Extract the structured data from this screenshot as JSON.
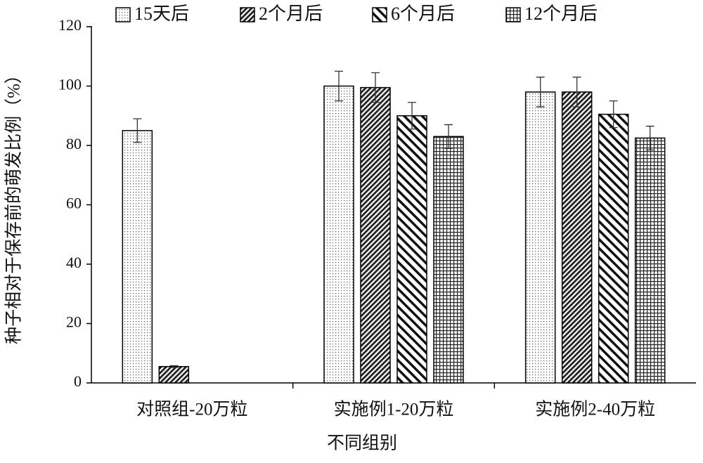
{
  "chart_data": {
    "type": "bar",
    "x_label": "不同组别",
    "y_label": "种子相对于保存前的萌发比例（%）",
    "categories": [
      "对照组-20万粒",
      "实施例1-20万粒",
      "实施例2-40万粒"
    ],
    "series": [
      {
        "name": "15天后",
        "color": "#000000",
        "pattern": "dots",
        "values": [
          85,
          100,
          98
        ],
        "errors": [
          4,
          5,
          5
        ]
      },
      {
        "name": "2个月后",
        "color": "#000000",
        "pattern": "dense-hatch",
        "values": [
          5.5,
          99.5,
          98
        ],
        "errors": [
          0.3,
          5,
          5
        ]
      },
      {
        "name": "6个月后",
        "color": "#000000",
        "pattern": "back-hatch",
        "values": [
          null,
          90,
          90.5
        ],
        "errors": [
          null,
          4.5,
          4.5
        ]
      },
      {
        "name": "12个月后",
        "color": "#000000",
        "pattern": "grid",
        "values": [
          null,
          83,
          82.5
        ],
        "errors": [
          null,
          4,
          4
        ]
      }
    ],
    "ylim": [
      0,
      120
    ],
    "yticks": [
      0,
      20,
      40,
      60,
      80,
      100,
      120
    ],
    "grid": false,
    "legend": "top"
  }
}
